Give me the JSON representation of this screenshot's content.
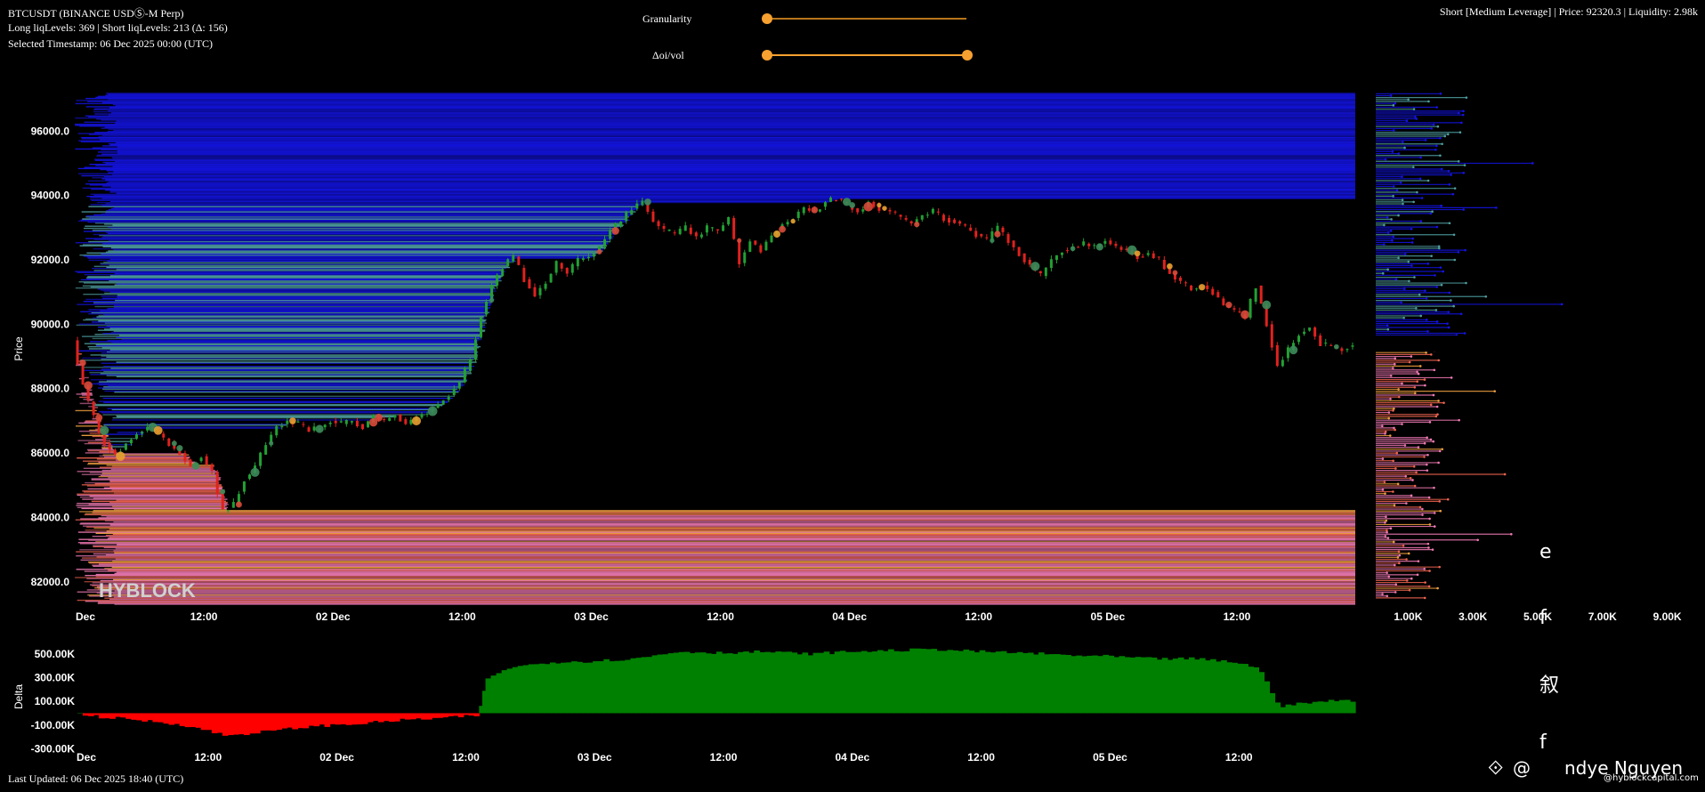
{
  "header": {
    "symbol": "BTCUSDT (BINANCE USDⓈ-M Perp)",
    "levels": "Long liqLevels: 369 | Short liqLevels: 213 (Δ: 156)",
    "timestamp": "Selected Timestamp: 06 Dec 2025 00:00 (UTC)",
    "right_info": "Short [Medium Leverage] | Price: 92320.3 | Liquidity: 2.98k"
  },
  "controls": {
    "granularity_label": "Granularity",
    "granularity_value": 0.0,
    "oivol_label": "Δoi/vol",
    "oivol_range": [
      0.0,
      1.0
    ]
  },
  "footer": {
    "last_updated": "Last Updated: 06 Dec 2025 18:40 (UTC)",
    "author_prefix": "@",
    "author_name": "ndye Nguyen",
    "site": "@hyblockcapital.com"
  },
  "watermark": "HYBLOCK",
  "side_glyphs": [
    "e",
    "f",
    "叙",
    "f"
  ],
  "colors": {
    "background": "#000000",
    "short_liq": "#1414e6",
    "short_liq_teal": "#4f9ea0",
    "long_liq_pink": "#f07ab4",
    "long_liq_salmon": "#f06450",
    "long_liq_orange": "#f0a040",
    "delta_positive": "#008000",
    "delta_negative": "#ff0000",
    "slider": "#f7a130"
  },
  "chart_data": [
    {
      "type": "line",
      "name": "price-heatmap",
      "ylabel": "Price",
      "xlabel": "",
      "ylim": [
        81000,
        97500
      ],
      "yticks": [
        "82000.0",
        "84000.0",
        "86000.0",
        "88000.0",
        "90000.0",
        "92000.0",
        "94000.0",
        "96000.0"
      ],
      "xticks": [
        "Dec",
        "12:00",
        "02 Dec",
        "12:00",
        "03 Dec",
        "12:00",
        "04 Dec",
        "12:00",
        "05 Dec",
        "12:00"
      ],
      "x_hours": [
        0,
        12,
        24,
        36,
        48,
        60,
        72,
        84,
        96,
        108
      ],
      "xlim_hours": [
        0,
        119
      ],
      "price_path": [
        [
          0,
          89500
        ],
        [
          1,
          88100
        ],
        [
          2,
          87100
        ],
        [
          3,
          86300
        ],
        [
          4,
          85900
        ],
        [
          5,
          86300
        ],
        [
          6,
          86600
        ],
        [
          7,
          86800
        ],
        [
          8,
          86600
        ],
        [
          9,
          86300
        ],
        [
          10,
          86000
        ],
        [
          11,
          85600
        ],
        [
          12,
          85900
        ],
        [
          13,
          85400
        ],
        [
          14,
          84200
        ],
        [
          15,
          84400
        ],
        [
          16,
          85200
        ],
        [
          17,
          85600
        ],
        [
          18,
          86300
        ],
        [
          19,
          86800
        ],
        [
          20,
          87000
        ],
        [
          21,
          86900
        ],
        [
          22,
          86700
        ],
        [
          23,
          86800
        ],
        [
          24,
          87000
        ],
        [
          25,
          86900
        ],
        [
          26,
          87000
        ],
        [
          27,
          86800
        ],
        [
          28,
          87100
        ],
        [
          29,
          87000
        ],
        [
          30,
          87200
        ],
        [
          31,
          86900
        ],
        [
          32,
          87100
        ],
        [
          33,
          87300
        ],
        [
          34,
          87500
        ],
        [
          35,
          87800
        ],
        [
          36,
          88200
        ],
        [
          37,
          88900
        ],
        [
          38,
          90300
        ],
        [
          39,
          91200
        ],
        [
          40,
          91800
        ],
        [
          41,
          92100
        ],
        [
          42,
          91400
        ],
        [
          43,
          90900
        ],
        [
          44,
          91300
        ],
        [
          45,
          91900
        ],
        [
          46,
          91600
        ],
        [
          47,
          92000
        ],
        [
          48,
          92100
        ],
        [
          49,
          92400
        ],
        [
          50,
          92900
        ],
        [
          51,
          93200
        ],
        [
          52,
          93600
        ],
        [
          53,
          93800
        ],
        [
          54,
          93200
        ],
        [
          55,
          92900
        ],
        [
          56,
          92800
        ],
        [
          57,
          93000
        ],
        [
          58,
          92700
        ],
        [
          59,
          93000
        ],
        [
          60,
          92900
        ],
        [
          61,
          93300
        ],
        [
          62,
          91900
        ],
        [
          63,
          92600
        ],
        [
          64,
          92300
        ],
        [
          65,
          92800
        ],
        [
          66,
          93100
        ],
        [
          67,
          93300
        ],
        [
          68,
          93600
        ],
        [
          69,
          93500
        ],
        [
          70,
          93800
        ],
        [
          71,
          93900
        ],
        [
          72,
          93700
        ],
        [
          73,
          93500
        ],
        [
          74,
          93800
        ],
        [
          75,
          93600
        ],
        [
          76,
          93500
        ],
        [
          77,
          93300
        ],
        [
          78,
          93100
        ],
        [
          79,
          93400
        ],
        [
          80,
          93500
        ],
        [
          81,
          93300
        ],
        [
          82,
          93200
        ],
        [
          83,
          93000
        ],
        [
          84,
          92800
        ],
        [
          85,
          92600
        ],
        [
          86,
          93000
        ],
        [
          87,
          92600
        ],
        [
          88,
          92200
        ],
        [
          89,
          91800
        ],
        [
          90,
          91500
        ],
        [
          91,
          92000
        ],
        [
          92,
          92300
        ],
        [
          93,
          92400
        ],
        [
          94,
          92500
        ],
        [
          95,
          92400
        ],
        [
          96,
          92600
        ],
        [
          97,
          92400
        ],
        [
          98,
          92300
        ],
        [
          99,
          92100
        ],
        [
          100,
          92200
        ],
        [
          101,
          92000
        ],
        [
          102,
          91600
        ],
        [
          103,
          91300
        ],
        [
          104,
          91100
        ],
        [
          105,
          91200
        ],
        [
          106,
          91000
        ],
        [
          107,
          90600
        ],
        [
          108,
          90400
        ],
        [
          109,
          90200
        ],
        [
          110,
          91200
        ],
        [
          111,
          90000
        ],
        [
          112,
          88700
        ],
        [
          113,
          89200
        ],
        [
          114,
          89700
        ],
        [
          115,
          89900
        ],
        [
          116,
          89400
        ],
        [
          117,
          89300
        ],
        [
          118,
          89200
        ],
        [
          119,
          89400
        ]
      ]
    },
    {
      "type": "bar",
      "name": "liquidity-profile",
      "xticks": [
        "1.00K",
        "3.00K",
        "5.00K",
        "7.00K",
        "9.00K"
      ],
      "xlim": [
        0,
        10000
      ]
    },
    {
      "type": "area",
      "name": "delta",
      "ylabel": "Delta",
      "yticks": [
        "500.00K",
        "300.00K",
        "100.00K",
        "-100.00K",
        "-300.00K"
      ],
      "ylim": [
        -350000,
        650000
      ],
      "xticks": [
        "Dec",
        "12:00",
        "02 Dec",
        "12:00",
        "03 Dec",
        "12:00",
        "04 Dec",
        "12:00",
        "05 Dec",
        "12:00"
      ],
      "series": [
        {
          "values": [
            [
              0,
              0
            ],
            [
              2,
              -30000
            ],
            [
              6,
              -60000
            ],
            [
              10,
              -100000
            ],
            [
              14,
              -190000
            ],
            [
              18,
              -150000
            ],
            [
              22,
              -110000
            ],
            [
              26,
              -90000
            ],
            [
              30,
              -60000
            ],
            [
              34,
              -40000
            ],
            [
              37.4,
              -20000
            ],
            [
              38,
              270000
            ],
            [
              40,
              380000
            ],
            [
              44,
              430000
            ],
            [
              48,
              440000
            ],
            [
              52,
              460000
            ],
            [
              56,
              520000
            ],
            [
              60,
              510000
            ],
            [
              64,
              520000
            ],
            [
              68,
              500000
            ],
            [
              72,
              520000
            ],
            [
              76,
              530000
            ],
            [
              80,
              540000
            ],
            [
              84,
              520000
            ],
            [
              88,
              510000
            ],
            [
              92,
              490000
            ],
            [
              96,
              480000
            ],
            [
              100,
              460000
            ],
            [
              104,
              460000
            ],
            [
              108,
              430000
            ],
            [
              110,
              380000
            ],
            [
              112,
              60000
            ],
            [
              116,
              100000
            ],
            [
              119,
              110000
            ]
          ]
        }
      ]
    }
  ]
}
